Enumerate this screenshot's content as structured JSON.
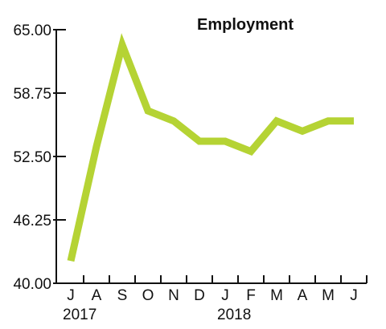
{
  "chart_data": {
    "type": "line",
    "title": "Employment",
    "xlabel": "",
    "ylabel": "",
    "categories": [
      "J",
      "A",
      "S",
      "O",
      "N",
      "D",
      "J",
      "F",
      "M",
      "A",
      "M",
      "J"
    ],
    "year_labels": [
      {
        "index": 0,
        "label": "2017"
      },
      {
        "index": 6,
        "label": "2018"
      }
    ],
    "series": [
      {
        "values": [
          42.2,
          53.5,
          63.5,
          57.0,
          56.0,
          54.0,
          54.0,
          53.0,
          56.0,
          55.0,
          56.0,
          56.0
        ]
      }
    ],
    "ylim": [
      40,
      65
    ],
    "yticks": [
      40,
      46.25,
      52.5,
      58.75,
      65
    ],
    "ytick_labels": [
      "40.00",
      "46.25",
      "52.50",
      "58.75",
      "65.00"
    ],
    "grid": false,
    "legend": "none",
    "line_color": "#b5d334",
    "axis_color": "#111111"
  }
}
